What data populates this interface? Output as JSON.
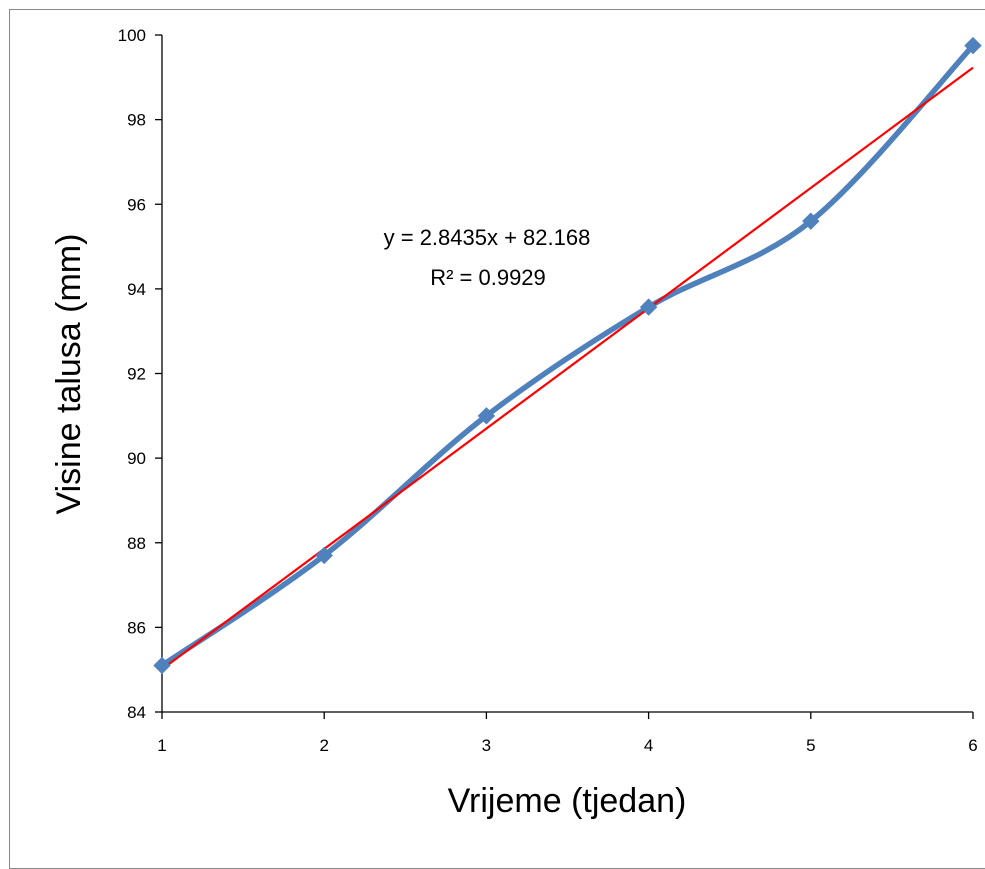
{
  "chart_data": {
    "type": "line",
    "x": [
      1,
      2,
      3,
      4,
      5,
      6
    ],
    "series": [
      {
        "values": [
          85.1,
          87.7,
          91.0,
          93.57,
          95.6,
          99.75
        ],
        "color": "#4F81BD",
        "style": "smoothed line with diamond markers"
      }
    ],
    "trendline": {
      "type": "linear",
      "slope": 2.8435,
      "intercept": 82.168,
      "color": "#FF0000",
      "equation_label": "y = 2.8435x + 82.168",
      "r2_label": "R² = 0.9929"
    },
    "xlabel": "Vrijeme (tjedan)",
    "ylabel": "Visine talusa (mm)",
    "xlim": [
      1,
      6
    ],
    "ylim": [
      84,
      100
    ],
    "x_ticks": [
      "1",
      "2",
      "3",
      "4",
      "5",
      "6"
    ],
    "y_ticks": [
      "84",
      "86",
      "88",
      "90",
      "92",
      "94",
      "96",
      "98",
      "100"
    ],
    "grid": false,
    "legend": "none"
  }
}
